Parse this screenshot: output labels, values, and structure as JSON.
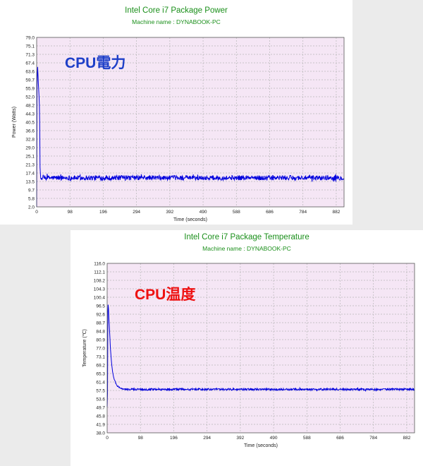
{
  "chart_data": [
    {
      "type": "line",
      "title": "Intel Core i7 Package Power",
      "subtitle": "Machine name : DYNABOOK-PC",
      "annotation": "CPU電力",
      "annotation_color": "#1e3fc8",
      "xlabel": "Time (seconds)",
      "ylabel": "Power (Watts)",
      "xlim": [
        0,
        905
      ],
      "ylim": [
        2.0,
        79.0
      ],
      "x_ticks": [
        0,
        98,
        196,
        294,
        392,
        490,
        588,
        686,
        784,
        882
      ],
      "y_ticks": [
        "2.0",
        "5.8",
        "9.7",
        "13.5",
        "17.4",
        "21.3",
        "25.1",
        "29.0",
        "32.8",
        "36.6",
        "40.5",
        "44.3",
        "48.2",
        "52.0",
        "55.9",
        "59.7",
        "63.6",
        "67.4",
        "71.3",
        "75.1",
        "79.0"
      ],
      "grid": true,
      "plot_bg": "#f5e6f5",
      "line_color": "#0000dd",
      "series": [
        {
          "steady_value": 15.2,
          "noise": 2.2,
          "x": [
            0,
            1,
            2,
            3,
            4,
            5,
            6,
            7,
            8,
            9,
            10,
            12,
            14,
            17
          ],
          "values": [
            2.0,
            55.0,
            63.0,
            65.6,
            62.0,
            58.0,
            55.0,
            52.0,
            48.0,
            40.5,
            20.0,
            15.5,
            14.2,
            15.2
          ]
        }
      ]
    },
    {
      "type": "line",
      "title": "Intel Core i7 Package Temperature",
      "subtitle": "Machine name : DYNABOOK-PC",
      "annotation": "CPU温度",
      "annotation_color": "#ee1111",
      "xlabel": "Time (seconds)",
      "ylabel": "Temperature (℃)",
      "xlim": [
        0,
        905
      ],
      "ylim": [
        38.0,
        116.0
      ],
      "x_ticks": [
        0,
        98,
        196,
        294,
        392,
        490,
        588,
        686,
        784,
        882
      ],
      "y_ticks": [
        "38.0",
        "41.9",
        "45.8",
        "49.7",
        "53.6",
        "57.5",
        "61.4",
        "65.3",
        "69.2",
        "73.1",
        "77.0",
        "80.9",
        "84.8",
        "88.7",
        "92.6",
        "96.5",
        "100.4",
        "104.3",
        "108.2",
        "112.1",
        "116.0"
      ],
      "grid": true,
      "plot_bg": "#f5e6f5",
      "line_color": "#0000dd",
      "series": [
        {
          "steady_value": 58.0,
          "noise": 0.9,
          "x": [
            0,
            1,
            2,
            3,
            4,
            5,
            6,
            8,
            10,
            13,
            16,
            20,
            25,
            30,
            40,
            50
          ],
          "values": [
            50.0,
            56.0,
            94.0,
            97.0,
            95.0,
            91.0,
            88.0,
            82.0,
            76.0,
            70.0,
            66.0,
            63.0,
            61.0,
            59.5,
            58.5,
            58.0
          ]
        }
      ]
    }
  ]
}
